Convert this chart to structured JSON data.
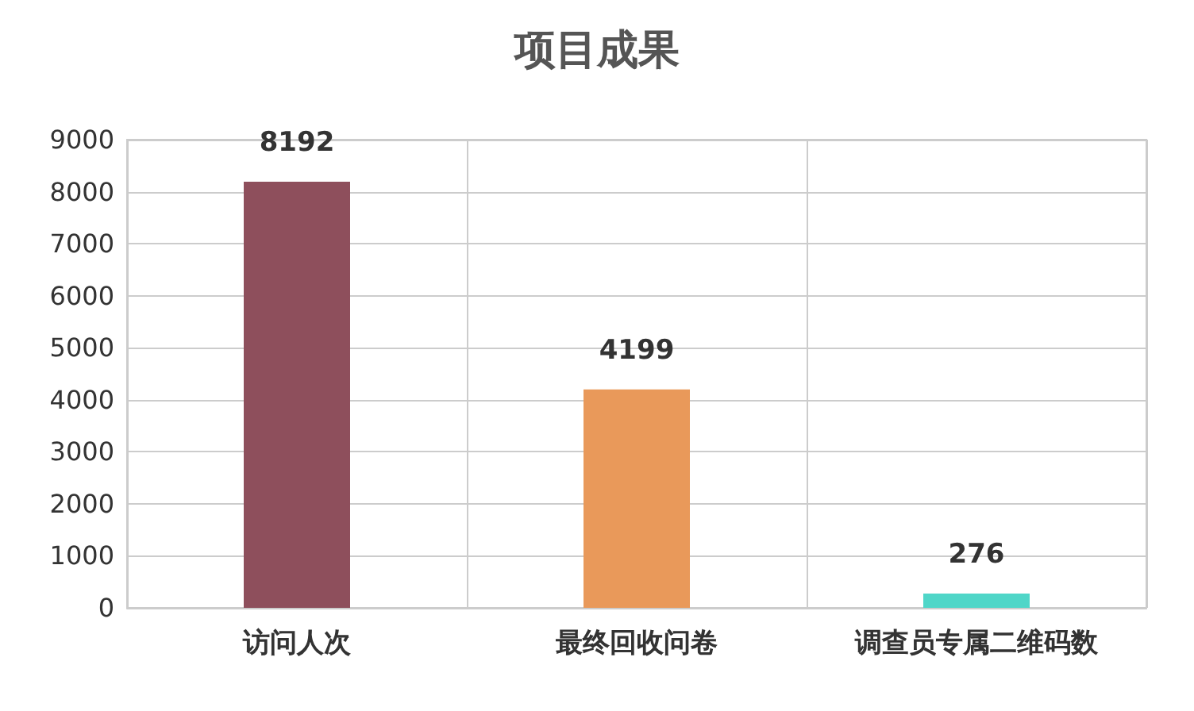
{
  "chart_data": {
    "type": "bar",
    "title": "项目成果",
    "categories": [
      "访问人次",
      "最终回收问卷",
      "调查员专属二维码数"
    ],
    "values": [
      8192,
      4199,
      276
    ],
    "colors": [
      "#8e4f5c",
      "#e9995a",
      "#4fd6c8"
    ],
    "ylim": [
      0,
      9000
    ],
    "yticks": [
      0,
      1000,
      2000,
      3000,
      4000,
      5000,
      6000,
      7000,
      8000,
      9000
    ],
    "grid": true,
    "data_labels": true
  }
}
